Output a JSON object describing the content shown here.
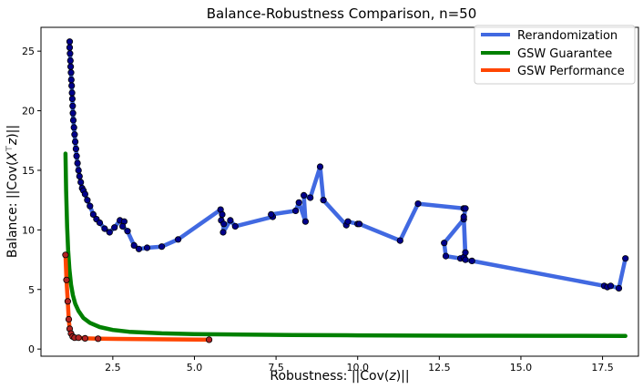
{
  "chart_data": {
    "type": "line",
    "title": "Balance-Robustness Comparison, n=50",
    "xlabel_prefix": "Robustness: ||Cov(",
    "xlabel_var": "z",
    "xlabel_suffix": ")||",
    "ylabel_prefix": "Balance: ||Cov(",
    "ylabel_var": "X",
    "ylabel_sup": "⊤",
    "ylabel_var2": "z",
    "ylabel_suffix": ")||",
    "xlim": [
      0.3,
      18.6
    ],
    "ylim": [
      -0.6,
      27.0
    ],
    "xticks": [
      2.5,
      5.0,
      7.5,
      10.0,
      12.5,
      15.0,
      17.5
    ],
    "xtick_labels": [
      "2.5",
      "5.0",
      "7.5",
      "10.0",
      "12.5",
      "15.0",
      "17.5"
    ],
    "yticks": [
      0,
      5,
      10,
      15,
      20,
      25
    ],
    "ytick_labels": [
      "0",
      "5",
      "10",
      "15",
      "20",
      "25"
    ],
    "legend_position": "top-right",
    "series": [
      {
        "name": "Rerandomization",
        "color": "#4169e1",
        "markers": true,
        "marker_color": "#00008b",
        "points": [
          [
            1.18,
            25.8
          ],
          [
            1.18,
            25.3
          ],
          [
            1.19,
            24.8
          ],
          [
            1.2,
            24.2
          ],
          [
            1.21,
            23.7
          ],
          [
            1.22,
            23.2
          ],
          [
            1.23,
            22.6
          ],
          [
            1.24,
            22.1
          ],
          [
            1.25,
            21.5
          ],
          [
            1.26,
            21.0
          ],
          [
            1.27,
            20.4
          ],
          [
            1.28,
            19.8
          ],
          [
            1.29,
            19.2
          ],
          [
            1.31,
            18.6
          ],
          [
            1.33,
            18.0
          ],
          [
            1.35,
            17.4
          ],
          [
            1.37,
            16.8
          ],
          [
            1.39,
            16.2
          ],
          [
            1.42,
            15.6
          ],
          [
            1.45,
            15.0
          ],
          [
            1.48,
            14.5
          ],
          [
            1.52,
            14.0
          ],
          [
            1.56,
            13.5
          ],
          [
            1.6,
            13.3
          ],
          [
            1.65,
            13.0
          ],
          [
            1.72,
            12.5
          ],
          [
            1.8,
            12.0
          ],
          [
            1.9,
            11.3
          ],
          [
            2.0,
            10.9
          ],
          [
            2.1,
            10.6
          ],
          [
            2.25,
            10.1
          ],
          [
            2.4,
            9.8
          ],
          [
            2.55,
            10.2
          ],
          [
            2.72,
            10.8
          ],
          [
            2.85,
            10.7
          ],
          [
            2.8,
            10.3
          ],
          [
            2.95,
            9.9
          ],
          [
            3.15,
            8.7
          ],
          [
            3.3,
            8.4
          ],
          [
            3.55,
            8.5
          ],
          [
            4.0,
            8.6
          ],
          [
            4.5,
            9.2
          ],
          [
            5.8,
            11.7
          ],
          [
            5.85,
            11.3
          ],
          [
            5.82,
            10.8
          ],
          [
            5.9,
            10.5
          ],
          [
            5.88,
            9.8
          ],
          [
            6.1,
            10.8
          ],
          [
            6.25,
            10.3
          ],
          [
            7.4,
            11.1
          ],
          [
            7.35,
            11.3
          ],
          [
            8.1,
            11.6
          ],
          [
            8.2,
            12.3
          ],
          [
            8.4,
            10.7
          ],
          [
            8.35,
            12.9
          ],
          [
            8.55,
            12.7
          ],
          [
            8.85,
            15.3
          ],
          [
            8.95,
            12.5
          ],
          [
            9.65,
            10.4
          ],
          [
            9.7,
            10.7
          ],
          [
            10.0,
            10.5
          ],
          [
            10.05,
            10.5
          ],
          [
            11.3,
            9.1
          ],
          [
            11.85,
            12.2
          ],
          [
            13.25,
            11.8
          ],
          [
            13.3,
            11.8
          ],
          [
            13.25,
            10.9
          ],
          [
            12.65,
            8.9
          ],
          [
            12.7,
            7.8
          ],
          [
            13.15,
            7.6
          ],
          [
            13.25,
            7.7
          ],
          [
            13.3,
            8.1
          ],
          [
            13.25,
            11.1
          ],
          [
            13.3,
            7.5
          ],
          [
            13.5,
            7.4
          ],
          [
            17.55,
            5.3
          ],
          [
            17.65,
            5.2
          ],
          [
            17.75,
            5.3
          ],
          [
            18.0,
            5.1
          ],
          [
            18.2,
            7.6
          ]
        ]
      },
      {
        "name": "GSW Guarantee",
        "color": "#008000",
        "markers": false,
        "points": [
          [
            1.05,
            16.4
          ],
          [
            1.07,
            13.3
          ],
          [
            1.1,
            10.3
          ],
          [
            1.13,
            8.3
          ],
          [
            1.17,
            6.7
          ],
          [
            1.22,
            5.4
          ],
          [
            1.28,
            4.5
          ],
          [
            1.35,
            3.8
          ],
          [
            1.45,
            3.2
          ],
          [
            1.6,
            2.6
          ],
          [
            1.8,
            2.2
          ],
          [
            2.1,
            1.85
          ],
          [
            2.5,
            1.6
          ],
          [
            3.0,
            1.45
          ],
          [
            4.0,
            1.32
          ],
          [
            5.0,
            1.26
          ],
          [
            6.5,
            1.21
          ],
          [
            8.0,
            1.18
          ],
          [
            10.0,
            1.15
          ],
          [
            12.0,
            1.13
          ],
          [
            14.0,
            1.12
          ],
          [
            16.0,
            1.11
          ],
          [
            18.2,
            1.1
          ]
        ]
      },
      {
        "name": "GSW Performance",
        "color": "#ff4500",
        "markers": true,
        "marker_color": "#b22222",
        "points": [
          [
            1.05,
            7.9
          ],
          [
            1.08,
            5.8
          ],
          [
            1.12,
            4.0
          ],
          [
            1.15,
            2.5
          ],
          [
            1.18,
            1.7
          ],
          [
            1.22,
            1.3
          ],
          [
            1.27,
            1.05
          ],
          [
            1.33,
            0.95
          ],
          [
            1.45,
            0.95
          ],
          [
            1.65,
            0.9
          ],
          [
            2.05,
            0.87
          ],
          [
            5.45,
            0.78
          ]
        ]
      }
    ]
  }
}
